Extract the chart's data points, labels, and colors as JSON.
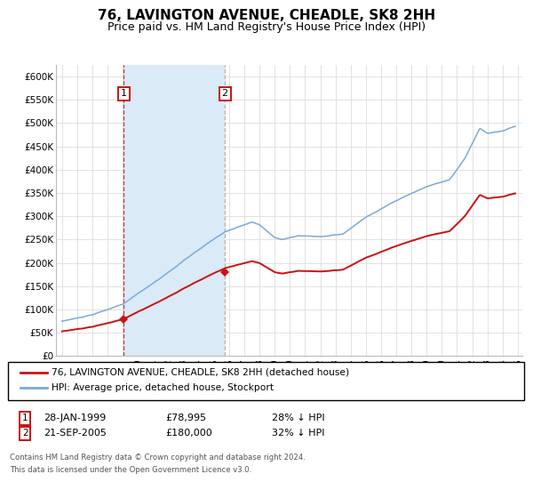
{
  "title": "76, LAVINGTON AVENUE, CHEADLE, SK8 2HH",
  "subtitle": "Price paid vs. HM Land Registry's House Price Index (HPI)",
  "ylim": [
    0,
    625000
  ],
  "yticks": [
    0,
    50000,
    100000,
    150000,
    200000,
    250000,
    300000,
    350000,
    400000,
    450000,
    500000,
    550000,
    600000
  ],
  "ytick_labels": [
    "£0",
    "£50K",
    "£100K",
    "£150K",
    "£200K",
    "£250K",
    "£300K",
    "£350K",
    "£400K",
    "£450K",
    "£500K",
    "£550K",
    "£600K"
  ],
  "sale1_date": 1999.07,
  "sale1_price": 78995,
  "sale2_date": 2005.72,
  "sale2_price": 180000,
  "hpi_color": "#7aabdb",
  "price_color": "#cc1111",
  "shade_color": "#daeaf7",
  "legend_line1": "76, LAVINGTON AVENUE, CHEADLE, SK8 2HH (detached house)",
  "legend_line2": "HPI: Average price, detached house, Stockport",
  "footer1": "Contains HM Land Registry data © Crown copyright and database right 2024.",
  "footer2": "This data is licensed under the Open Government Licence v3.0.",
  "background_color": "#ffffff",
  "grid_color": "#dddddd",
  "xlim_left": 1994.6,
  "xlim_right": 2025.3
}
